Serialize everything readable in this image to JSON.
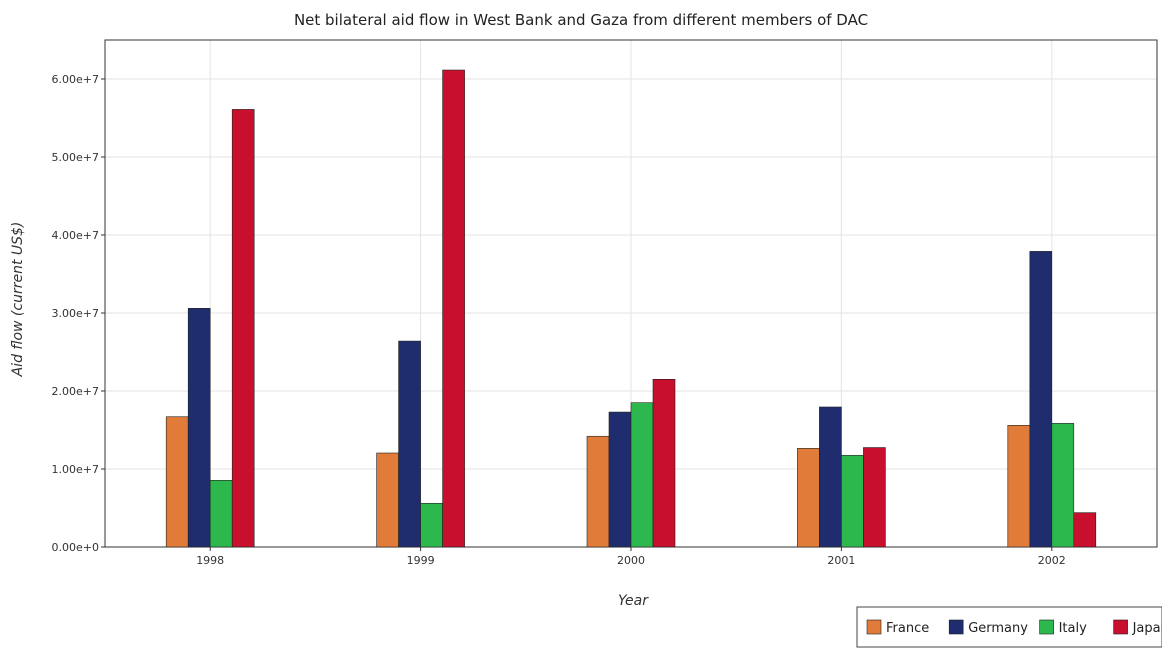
{
  "chart_data": {
    "type": "bar",
    "title": "Net bilateral aid flow in West Bank and Gaza from different members of DAC",
    "xlabel": "Year",
    "ylabel": "Aid flow (current US$)",
    "categories": [
      "1998",
      "1999",
      "2000",
      "2001",
      "2002"
    ],
    "series": [
      {
        "name": "France",
        "color": "#e07b39",
        "values": [
          16700000,
          12050000,
          14200000,
          12650000,
          15600000
        ]
      },
      {
        "name": "Germany",
        "color": "#1f2d6e",
        "values": [
          30600000,
          26400000,
          17300000,
          17950000,
          37900000
        ]
      },
      {
        "name": "Italy",
        "color": "#2db84d",
        "values": [
          8550000,
          5600000,
          18500000,
          11750000,
          15850000
        ]
      },
      {
        "name": "Japan",
        "color": "#c8102e",
        "values": [
          56100000,
          61150000,
          21500000,
          12750000,
          4400000
        ]
      }
    ],
    "ylim": [
      0,
      65000000
    ],
    "yticks": [
      0,
      10000000,
      20000000,
      30000000,
      40000000,
      50000000,
      60000000
    ],
    "ytick_labels": [
      "0.00e+0",
      "1.00e+7",
      "2.00e+7",
      "3.00e+7",
      "4.00e+7",
      "5.00e+7",
      "6.00e+7"
    ],
    "grid": true,
    "legend_position": "bottom-right"
  }
}
